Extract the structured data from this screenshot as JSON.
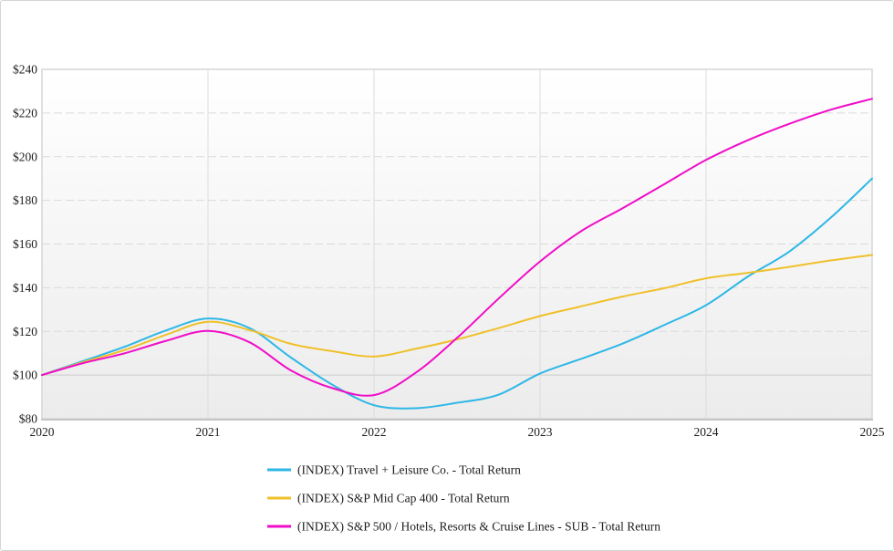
{
  "chart_data": {
    "type": "line",
    "title": "",
    "xlabel": "",
    "ylabel": "",
    "xlim": [
      2020,
      2025
    ],
    "ylim": [
      80,
      240
    ],
    "x_ticks": [
      2020,
      2021,
      2022,
      2023,
      2024,
      2025
    ],
    "x_tick_labels": [
      "2020",
      "2021",
      "2022",
      "2023",
      "2024",
      "2025"
    ],
    "y_ticks": [
      80,
      100,
      120,
      140,
      160,
      180,
      200,
      220,
      240
    ],
    "y_tick_labels": [
      "$80",
      "$100",
      "$120",
      "$140",
      "$160",
      "$180",
      "$200",
      "$220",
      "$240"
    ],
    "baseline_value": 100,
    "grid": "horizontal-dashed, vertical-solid",
    "legend_position": "bottom-left",
    "x": [
      2020,
      2020.25,
      2020.5,
      2020.75,
      2021,
      2021.25,
      2021.5,
      2021.75,
      2022,
      2022.25,
      2022.5,
      2022.75,
      2023,
      2023.25,
      2023.5,
      2023.75,
      2024,
      2024.25,
      2024.5,
      2024.75,
      2025
    ],
    "series": [
      {
        "id": "travel-leisure",
        "name": "(INDEX) Travel + Leisure Co. - Total Return",
        "color": "#2eb7e6",
        "values": [
          100,
          106.5,
          113,
          120.5,
          125.9,
          121.5,
          108,
          95.5,
          86.2,
          84.8,
          87.3,
          91,
          100.7,
          107.5,
          114.5,
          123,
          132,
          145,
          156.5,
          172,
          190
        ]
      },
      {
        "id": "sp-midcap-400",
        "name": "(INDEX) S&P Mid Cap 400 - Total Return",
        "color": "#f0c02a",
        "values": [
          100,
          106,
          111.5,
          118.5,
          124.4,
          120.6,
          114.3,
          110.9,
          108.5,
          112,
          116.3,
          121.5,
          127,
          131.5,
          136,
          139.8,
          144.3,
          146.8,
          149.5,
          152.5,
          155
        ]
      },
      {
        "id": "sp500-hotels-sub",
        "name": "(INDEX) S&P 500 / Hotels, Resorts & Cruise Lines - SUB - Total Return",
        "color": "#f00cc8",
        "values": [
          100,
          105.5,
          110,
          115.7,
          120.2,
          115,
          102.1,
          94,
          90.8,
          101,
          117,
          135,
          152,
          166,
          176.5,
          187.5,
          198.5,
          207.5,
          215,
          221.5,
          226.5
        ]
      }
    ],
    "style_colors": {
      "plot_bg_top": "#ffffff",
      "plot_bg_bottom": "#ececec",
      "grid_dashed": "#dadada",
      "grid_vertical": "#dcdcdc",
      "plot_frame": "#d9d9d9",
      "baseline_line": "#d2d2d2",
      "axis_bottom": "#c6c6c6",
      "text": "#1c1c1c"
    }
  }
}
